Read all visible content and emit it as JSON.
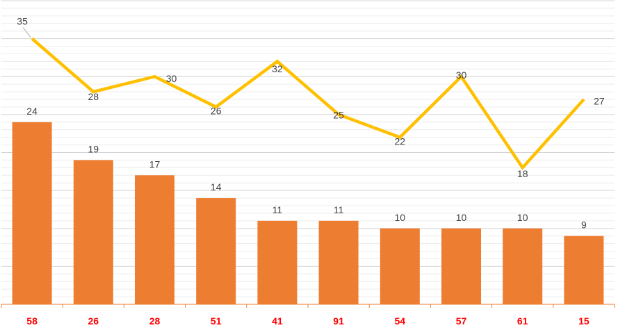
{
  "chart_data": {
    "type": "bar",
    "title": "",
    "xlabel": "",
    "ylabel": "",
    "ylim": [
      0,
      40
    ],
    "grid": true,
    "categories": [
      "58",
      "26",
      "28",
      "51",
      "41",
      "91",
      "54",
      "57",
      "61",
      "15"
    ],
    "series": [
      {
        "name": "bars",
        "type": "bar",
        "color": "#ED7D31",
        "values": [
          24,
          19,
          17,
          14,
          11,
          11,
          10,
          10,
          10,
          9
        ]
      },
      {
        "name": "line",
        "type": "line",
        "color": "#FFC000",
        "values": [
          35,
          28,
          30,
          26,
          32,
          25,
          22,
          30,
          18,
          27
        ]
      }
    ],
    "category_label_color": "#FF0000"
  }
}
